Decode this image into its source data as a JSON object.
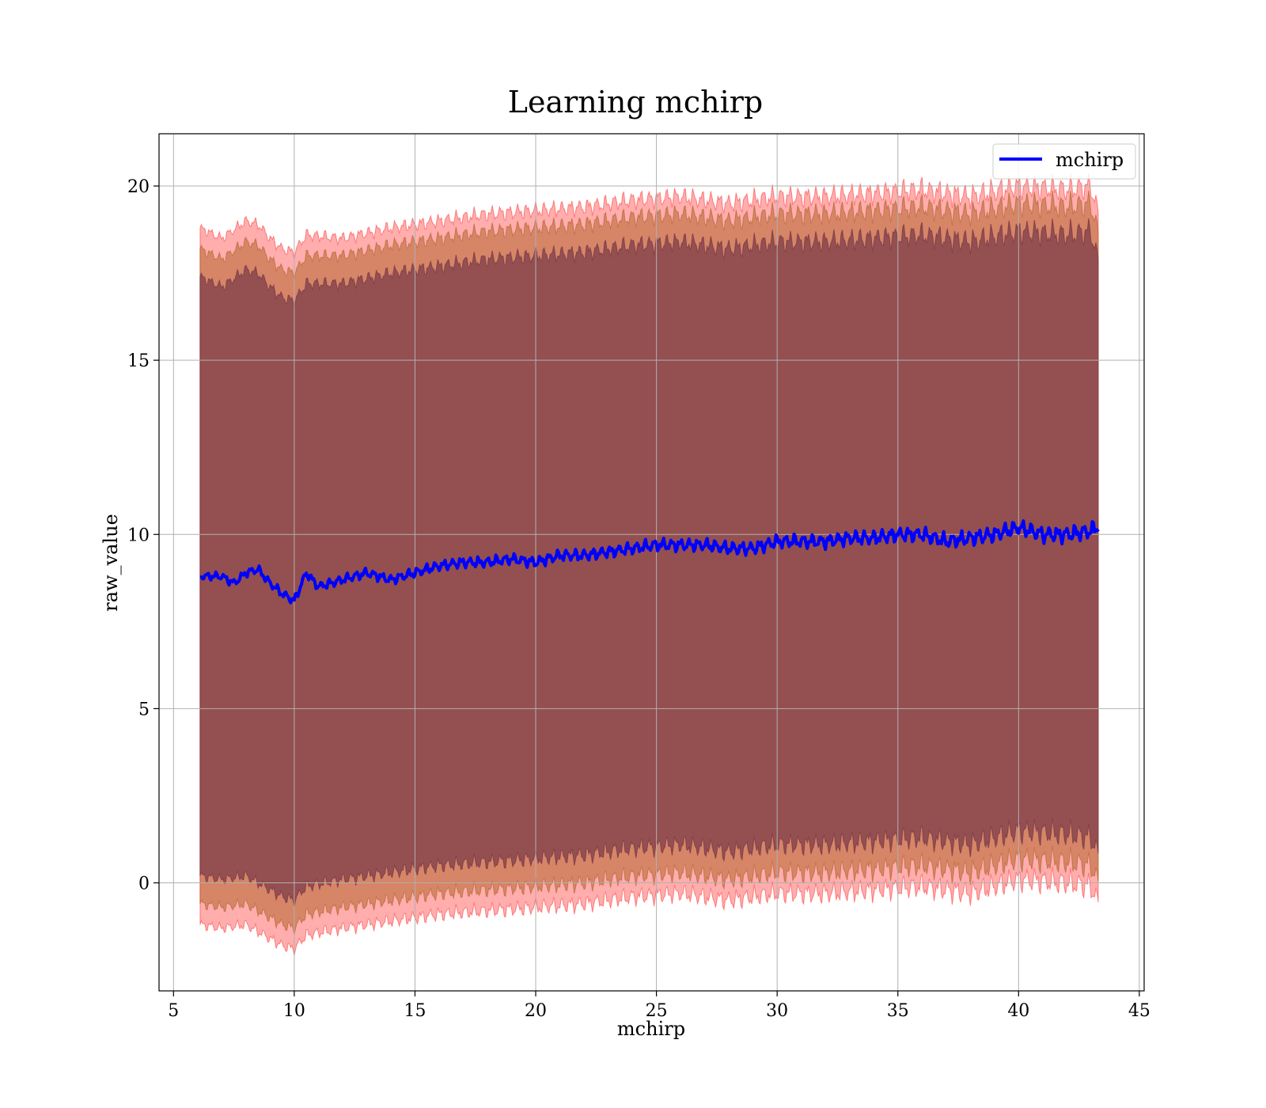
{
  "chart_data": {
    "type": "line",
    "title": "Learning mchirp",
    "xlabel": "mchirp",
    "ylabel": "raw_value",
    "xlim": [
      4.4,
      45.2
    ],
    "ylim": [
      -3.1,
      21.5
    ],
    "xticks": [
      5,
      10,
      15,
      20,
      25,
      30,
      35,
      40,
      45
    ],
    "yticks": [
      0,
      5,
      10,
      15,
      20
    ],
    "grid": true,
    "legend": {
      "location": "top-right",
      "entries": [
        "mchirp"
      ]
    },
    "x_range": [
      6.1,
      43.3
    ],
    "series": [
      {
        "name": "mchirp",
        "color": "#0000ff",
        "x": [
          6.1,
          6.5,
          7.0,
          7.5,
          8.0,
          8.5,
          9.0,
          9.5,
          10.0,
          10.5,
          11.0,
          12.0,
          13.0,
          14.0,
          15.0,
          16.0,
          17.0,
          18.0,
          19.0,
          20.0,
          21.0,
          22.0,
          23.0,
          24.0,
          25.0,
          26.0,
          27.0,
          28.0,
          29.0,
          30.0,
          31.0,
          32.0,
          33.0,
          34.0,
          35.0,
          36.0,
          37.0,
          38.0,
          39.0,
          40.0,
          41.0,
          42.0,
          43.0,
          43.3
        ],
        "y": [
          8.8,
          8.8,
          8.8,
          8.6,
          8.9,
          9.0,
          8.6,
          8.3,
          8.1,
          8.9,
          8.5,
          8.7,
          8.9,
          8.7,
          8.9,
          9.1,
          9.2,
          9.2,
          9.3,
          9.2,
          9.4,
          9.4,
          9.5,
          9.6,
          9.7,
          9.7,
          9.7,
          9.6,
          9.6,
          9.8,
          9.8,
          9.8,
          9.9,
          9.9,
          10.0,
          10.0,
          9.8,
          9.9,
          10.0,
          10.2,
          10.0,
          10.0,
          10.1,
          10.25
        ]
      }
    ],
    "bands": [
      {
        "name": "outer",
        "color": "#ff0000",
        "opacity": 0.32,
        "x": [
          6.1,
          7.0,
          8.0,
          8.5,
          9.0,
          9.5,
          10.0,
          10.5,
          12.0,
          14.0,
          16.0,
          18.0,
          20.0,
          22.0,
          24.0,
          26.0,
          28.0,
          30.0,
          32.0,
          34.0,
          36.0,
          38.0,
          40.0,
          42.0,
          43.0,
          43.3
        ],
        "upper": [
          18.8,
          18.5,
          19.0,
          18.9,
          18.5,
          18.2,
          18.1,
          18.6,
          18.5,
          18.8,
          19.0,
          19.2,
          19.3,
          19.4,
          19.6,
          19.7,
          19.5,
          19.7,
          19.7,
          19.8,
          19.9,
          19.7,
          20.0,
          19.9,
          20.0,
          19.2
        ],
        "lower": [
          -1.2,
          -1.3,
          -1.2,
          -1.4,
          -1.6,
          -1.8,
          -1.9,
          -1.5,
          -1.3,
          -1.1,
          -0.9,
          -0.8,
          -0.7,
          -0.6,
          -0.4,
          -0.3,
          -0.5,
          -0.3,
          -0.3,
          -0.2,
          -0.1,
          -0.3,
          0.1,
          0.0,
          -0.1,
          -0.6
        ]
      },
      {
        "name": "middle",
        "color": "#b4642d",
        "opacity": 0.55,
        "x": [
          6.1,
          7.0,
          8.0,
          8.5,
          9.0,
          9.5,
          10.0,
          10.5,
          12.0,
          14.0,
          16.0,
          18.0,
          20.0,
          22.0,
          24.0,
          26.0,
          28.0,
          30.0,
          32.0,
          34.0,
          36.0,
          38.0,
          40.0,
          42.0,
          43.0,
          43.3
        ],
        "upper": [
          18.2,
          17.9,
          18.4,
          18.3,
          17.9,
          17.6,
          17.5,
          18.0,
          18.0,
          18.3,
          18.5,
          18.7,
          18.8,
          18.9,
          19.1,
          19.2,
          19.0,
          19.2,
          19.2,
          19.3,
          19.4,
          19.2,
          19.5,
          19.4,
          19.5,
          18.6
        ],
        "lower": [
          -0.6,
          -0.7,
          -0.6,
          -0.8,
          -1.0,
          -1.2,
          -1.3,
          -0.9,
          -0.7,
          -0.5,
          -0.3,
          -0.2,
          -0.1,
          0.0,
          0.2,
          0.3,
          0.1,
          0.3,
          0.3,
          0.4,
          0.5,
          0.3,
          0.7,
          0.6,
          0.5,
          0.0
        ]
      },
      {
        "name": "inner",
        "color": "#7a3a48",
        "opacity": 0.72,
        "x": [
          6.1,
          7.0,
          8.0,
          8.5,
          9.0,
          9.5,
          10.0,
          10.5,
          12.0,
          14.0,
          16.0,
          18.0,
          20.0,
          22.0,
          24.0,
          26.0,
          28.0,
          30.0,
          32.0,
          34.0,
          36.0,
          38.0,
          40.0,
          42.0,
          43.0,
          43.3
        ],
        "upper": [
          17.4,
          17.1,
          17.6,
          17.5,
          17.1,
          16.8,
          16.7,
          17.2,
          17.2,
          17.5,
          17.7,
          17.9,
          18.0,
          18.1,
          18.3,
          18.4,
          18.2,
          18.4,
          18.4,
          18.5,
          18.6,
          18.4,
          18.7,
          18.6,
          18.7,
          17.8
        ],
        "lower": [
          0.2,
          0.1,
          0.2,
          0.0,
          -0.2,
          -0.4,
          -0.5,
          -0.1,
          0.1,
          0.3,
          0.5,
          0.6,
          0.7,
          0.8,
          1.0,
          1.1,
          0.9,
          1.1,
          1.1,
          1.2,
          1.3,
          1.1,
          1.5,
          1.4,
          1.3,
          0.8
        ]
      }
    ]
  }
}
